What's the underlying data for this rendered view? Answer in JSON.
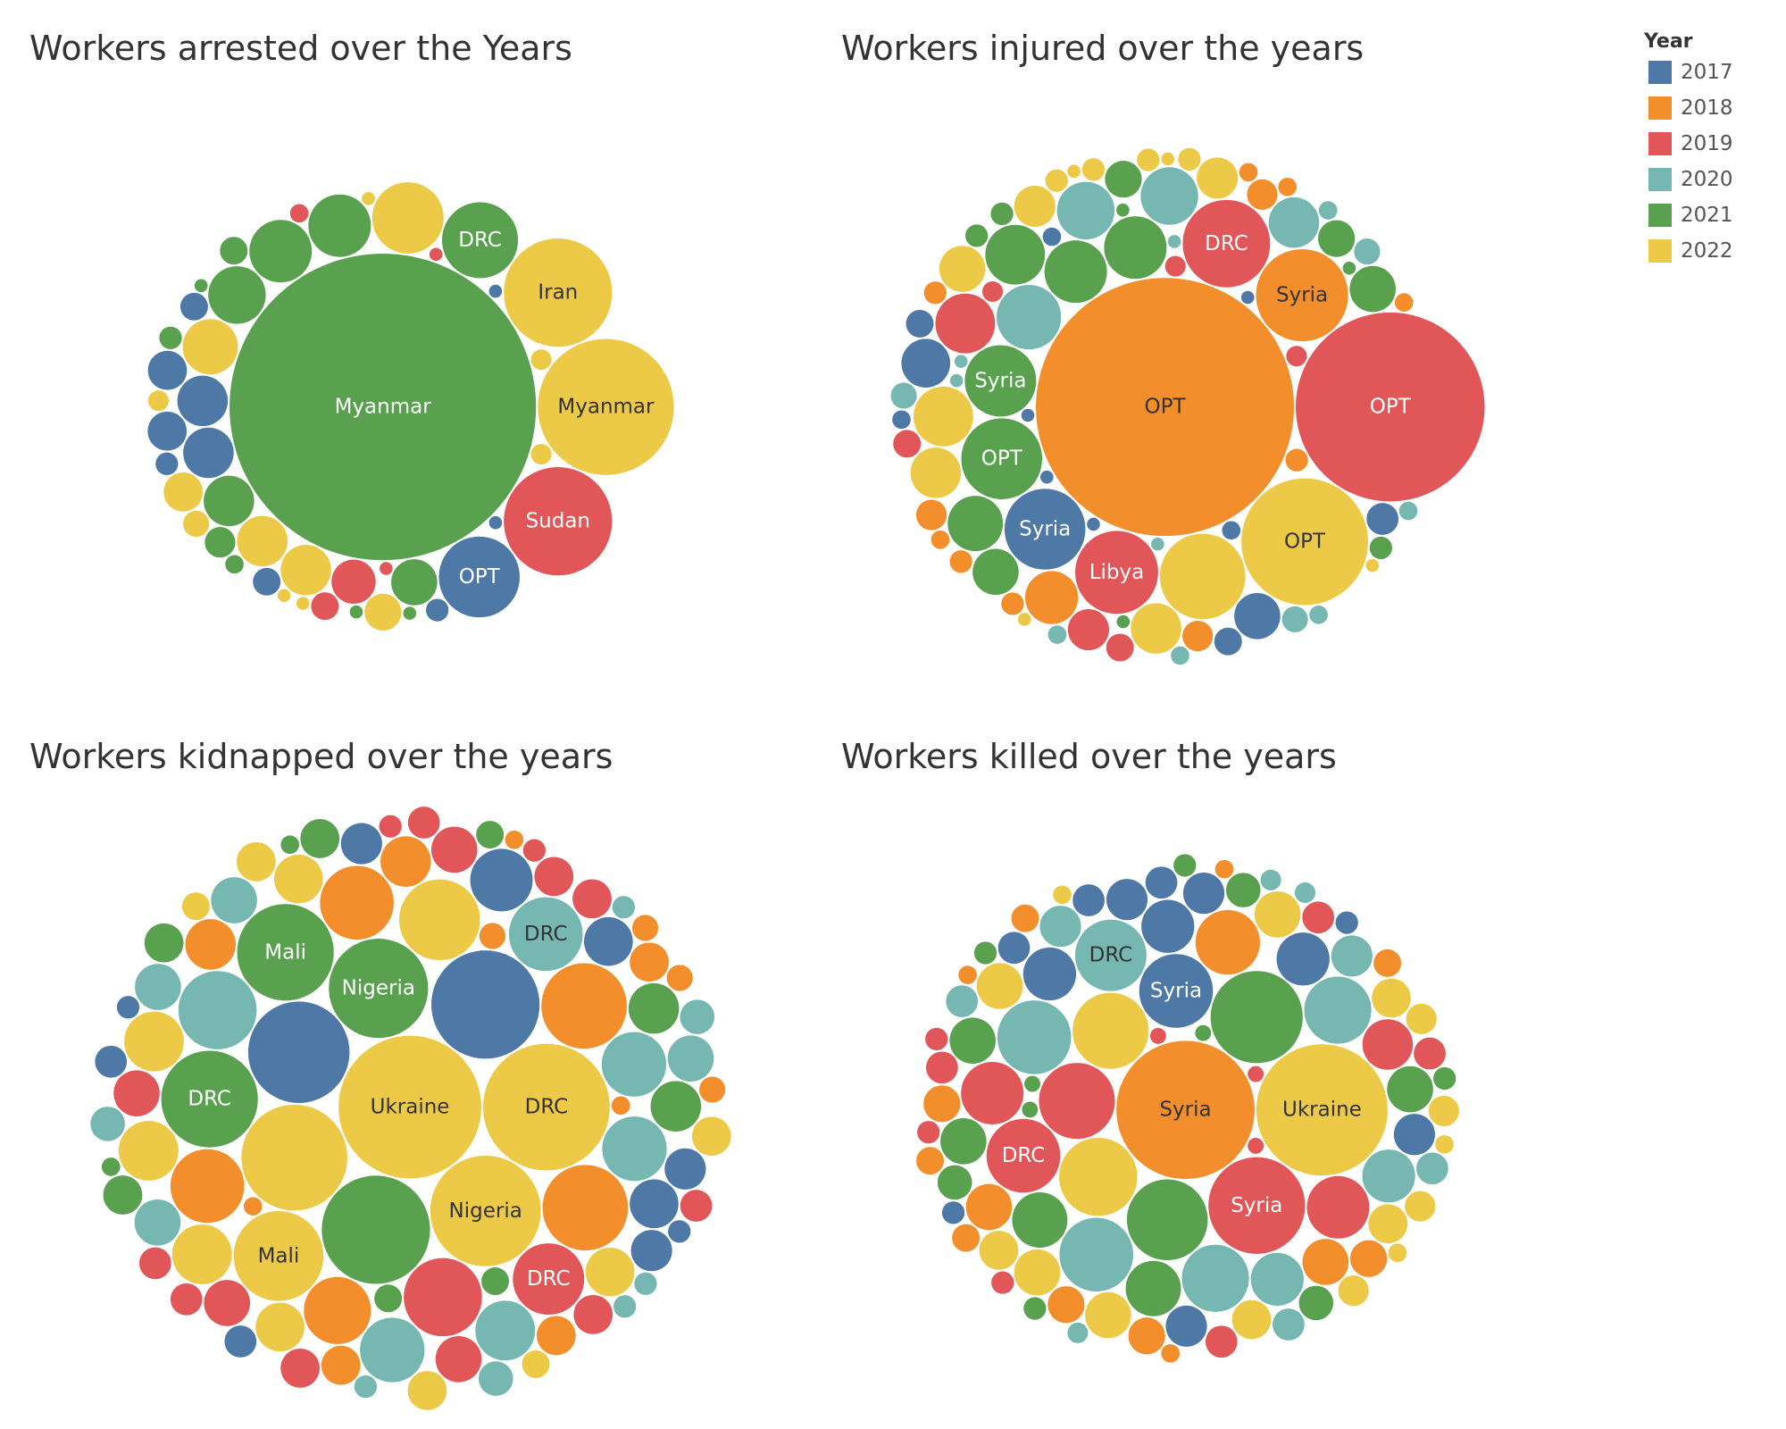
{
  "legend": {
    "title": "Year"
  },
  "chart_data": [
    {
      "type": "bubble",
      "title": "Workers arrested over the Years",
      "series": [
        {
          "name": "2017",
          "color": "#4e79a7",
          "values": [
            77,
            30,
            30,
            18,
            18,
            9,
            9,
            6,
            6,
            2,
            2
          ],
          "labels": [
            "OPT",
            null,
            null,
            null,
            null,
            null,
            null,
            null,
            null,
            null,
            null
          ]
        },
        {
          "name": "2018",
          "color": "#f28e2b",
          "values": [],
          "labels": []
        },
        {
          "name": "2019",
          "color": "#e15759",
          "values": [
            138,
            23,
            9,
            4,
            2,
            2
          ],
          "labels": [
            "Sudan",
            null,
            null,
            null,
            null,
            null
          ]
        },
        {
          "name": "2020",
          "color": "#76b7b2",
          "values": [],
          "labels": []
        },
        {
          "name": "2021",
          "color": "#59a14f",
          "values": [
            1106,
            68,
            46,
            46,
            39,
            30,
            25,
            11,
            9,
            6,
            4,
            2,
            2,
            2
          ],
          "labels": [
            "Myanmar",
            "DRC",
            null,
            null,
            null,
            null,
            null,
            null,
            null,
            null,
            null,
            null,
            null,
            null
          ]
        },
        {
          "name": "2022",
          "color": "#edc948",
          "values": [
            218,
            138,
            60,
            36,
            30,
            30,
            18,
            16,
            8,
            5,
            5,
            5,
            2,
            2,
            2
          ],
          "labels": [
            "Myanmar",
            "Iran",
            null,
            null,
            null,
            null,
            null,
            null,
            null,
            null,
            null,
            null,
            null,
            null,
            null
          ]
        }
      ]
    },
    {
      "type": "bubble",
      "title": "Workers injured over the years",
      "series": [
        {
          "name": "2017",
          "color": "#4e79a7",
          "values": [
            77,
            28,
            25,
            12,
            9,
            9,
            4,
            4,
            4,
            2,
            2,
            2,
            2
          ],
          "labels": [
            "Syria",
            null,
            null,
            null,
            null,
            null,
            null,
            null,
            null,
            null,
            null,
            null,
            null
          ]
        },
        {
          "name": "2018",
          "color": "#f28e2b",
          "values": [
            784,
            100,
            33,
            11,
            11,
            11,
            6,
            6,
            6,
            6,
            4,
            4,
            4,
            4
          ],
          "labels": [
            "OPT",
            "Syria",
            null,
            null,
            null,
            null,
            null,
            null,
            null,
            null,
            null,
            null,
            null,
            null
          ]
        },
        {
          "name": "2019",
          "color": "#e15759",
          "values": [
            420,
            90,
            81,
            42,
            20,
            9,
            9,
            5,
            5,
            5
          ],
          "labels": [
            "OPT",
            "DRC",
            "Libya",
            null,
            null,
            null,
            null,
            null,
            null,
            null
          ]
        },
        {
          "name": "2020",
          "color": "#76b7b2",
          "values": [
            49,
            39,
            39,
            30,
            8,
            8,
            8,
            4,
            4,
            4,
            4,
            4,
            2,
            2,
            2,
            2
          ],
          "labels": [
            null,
            null,
            null,
            null,
            null,
            null,
            null,
            null,
            null,
            null,
            null,
            null,
            null,
            null,
            null,
            null
          ]
        },
        {
          "name": "2021",
          "color": "#59a14f",
          "values": [
            77,
            60,
            46,
            46,
            42,
            36,
            25,
            25,
            16,
            16,
            6,
            6,
            6,
            2,
            2,
            2
          ],
          "labels": [
            "OPT",
            "Syria",
            null,
            null,
            null,
            null,
            null,
            null,
            null,
            null,
            null,
            null,
            null,
            null,
            null,
            null
          ]
        },
        {
          "name": "2022",
          "color": "#edc948",
          "values": [
            189,
            86,
            42,
            30,
            30,
            25,
            20,
            20,
            6,
            6,
            6,
            6,
            2,
            2,
            2,
            2
          ],
          "labels": [
            "OPT",
            null,
            null,
            null,
            null,
            null,
            null,
            null,
            null,
            null,
            null,
            null,
            null,
            null,
            null,
            null
          ]
        }
      ]
    },
    {
      "type": "bubble",
      "title": "Workers kidnapped over the years",
      "series": [
        {
          "name": "2017",
          "color": "#4e79a7",
          "values": [
            138,
            121,
            46,
            28,
            28,
            20,
            20,
            20,
            12,
            12,
            6,
            6
          ],
          "labels": [
            null,
            null,
            null,
            null,
            null,
            null,
            null,
            null,
            null,
            null,
            null,
            null
          ]
        },
        {
          "name": "2018",
          "color": "#f28e2b",
          "values": [
            86,
            86,
            64,
            64,
            53,
            30,
            30,
            18,
            18,
            18,
            8,
            8,
            8,
            8,
            4,
            4,
            4
          ],
          "labels": [
            null,
            null,
            null,
            null,
            null,
            null,
            null,
            null,
            null,
            null,
            null,
            null,
            null,
            null,
            null,
            null,
            null
          ]
        },
        {
          "name": "2019",
          "color": "#e15759",
          "values": [
            72,
            60,
            25,
            25,
            25,
            25,
            18,
            18,
            18,
            18,
            12,
            12,
            12,
            12,
            6,
            6
          ],
          "labels": [
            null,
            "DRC",
            null,
            null,
            null,
            null,
            null,
            null,
            null,
            null,
            null,
            null,
            null,
            null,
            null,
            null
          ]
        },
        {
          "name": "2020",
          "color": "#76b7b2",
          "values": [
            72,
            64,
            49,
            49,
            49,
            42,
            25,
            25,
            25,
            25,
            14,
            14,
            14,
            6,
            6,
            6,
            6
          ],
          "labels": [
            null,
            "DRC",
            null,
            null,
            null,
            null,
            null,
            null,
            null,
            null,
            null,
            null,
            null,
            null,
            null,
            null,
            null
          ]
        },
        {
          "name": "2021",
          "color": "#59a14f",
          "values": [
            138,
            116,
            110,
            110,
            30,
            30,
            18,
            18,
            18,
            9,
            9,
            9,
            4,
            4
          ],
          "labels": [
            null,
            "Nigeria",
            "DRC",
            "Mali",
            null,
            null,
            null,
            null,
            null,
            null,
            null,
            null,
            null,
            null
          ]
        },
        {
          "name": "2022",
          "color": "#edc948",
          "values": [
            240,
            189,
            144,
            132,
            95,
            77,
            42,
            42,
            42,
            28,
            28,
            28,
            18,
            18,
            18,
            9,
            9
          ],
          "labels": [
            "Ukraine",
            "DRC",
            "Nigeria",
            null,
            "Mali",
            null,
            null,
            null,
            null,
            null,
            null,
            null,
            null,
            null,
            null,
            null,
            null
          ]
        }
      ]
    },
    {
      "type": "bubble",
      "title": "Workers killed over the years",
      "series": [
        {
          "name": "2017",
          "color": "#4e79a7",
          "values": [
            64,
            33,
            33,
            33,
            20,
            20,
            20,
            20,
            12,
            12,
            12,
            6,
            6
          ],
          "labels": [
            "Syria",
            null,
            null,
            null,
            null,
            null,
            null,
            null,
            null,
            null,
            null,
            null,
            null
          ]
        },
        {
          "name": "2018",
          "color": "#f28e2b",
          "values": [
            225,
            49,
            25,
            25,
            16,
            16,
            16,
            16,
            9,
            9,
            9,
            9,
            4,
            4,
            4
          ],
          "labels": [
            "Syria",
            null,
            null,
            null,
            null,
            null,
            null,
            null,
            null,
            null,
            null,
            null,
            null,
            null,
            null
          ]
        },
        {
          "name": "2019",
          "color": "#e15759",
          "values": [
            110,
            68,
            64,
            46,
            46,
            30,
            12,
            12,
            12,
            12,
            6,
            6,
            6,
            3,
            3,
            3
          ],
          "labels": [
            "Syria",
            null,
            "DRC",
            null,
            null,
            null,
            null,
            null,
            null,
            null,
            null,
            null,
            null,
            null,
            null,
            null
          ]
        },
        {
          "name": "2020",
          "color": "#76b7b2",
          "values": [
            64,
            64,
            60,
            53,
            53,
            33,
            33,
            20,
            20,
            12,
            12,
            12,
            5,
            5,
            5
          ],
          "labels": [
            null,
            null,
            "DRC",
            null,
            null,
            null,
            null,
            null,
            null,
            null,
            null,
            null,
            null,
            null,
            null
          ]
        },
        {
          "name": "2021",
          "color": "#59a14f",
          "values": [
            100,
            77,
            36,
            36,
            25,
            25,
            25,
            14,
            14,
            14,
            6,
            6,
            6,
            6,
            3,
            3,
            3
          ],
          "labels": [
            null,
            null,
            null,
            null,
            null,
            null,
            null,
            null,
            null,
            null,
            null,
            null,
            null,
            null,
            null,
            null,
            null
          ]
        },
        {
          "name": "2022",
          "color": "#edc948",
          "values": [
            203,
            72,
            68,
            25,
            25,
            25,
            25,
            18,
            18,
            18,
            18,
            11,
            11,
            11,
            11,
            4,
            4,
            4
          ],
          "labels": [
            "Ukraine",
            null,
            null,
            null,
            null,
            null,
            null,
            null,
            null,
            null,
            null,
            null,
            null,
            null,
            null,
            null,
            null,
            null
          ]
        }
      ]
    }
  ]
}
